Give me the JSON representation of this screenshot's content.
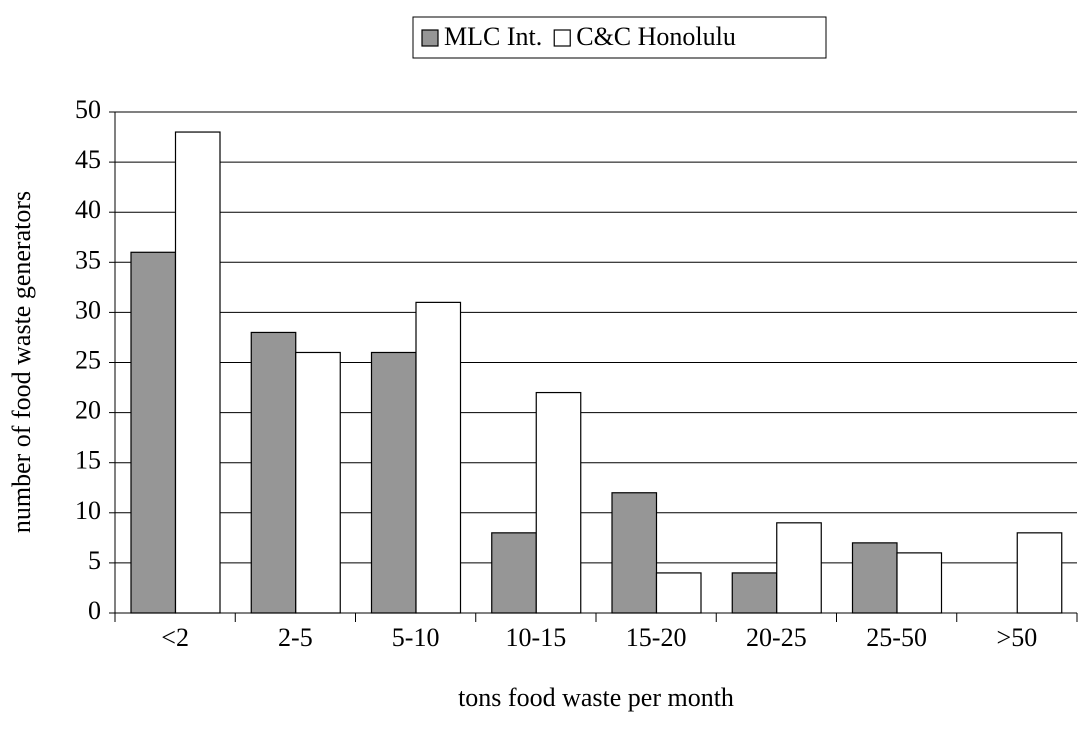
{
  "chart_data": {
    "type": "bar",
    "categories": [
      "<2",
      "2-5",
      "5-10",
      "10-15",
      "15-20",
      "20-25",
      "25-50",
      ">50"
    ],
    "series": [
      {
        "name": "MLC Int.",
        "color": "#969696",
        "values": [
          36,
          28,
          26,
          8,
          12,
          4,
          7,
          0
        ]
      },
      {
        "name": "C&C Honolulu",
        "color": "#ffffff",
        "values": [
          48,
          26,
          31,
          22,
          4,
          9,
          6,
          8
        ]
      }
    ],
    "xlabel": "tons food waste per month",
    "ylabel": "number of food waste generators",
    "ylim": [
      0,
      50
    ],
    "yticks": [
      0,
      5,
      10,
      15,
      20,
      25,
      30,
      35,
      40,
      45,
      50
    ],
    "grid": true,
    "legend": "top"
  }
}
